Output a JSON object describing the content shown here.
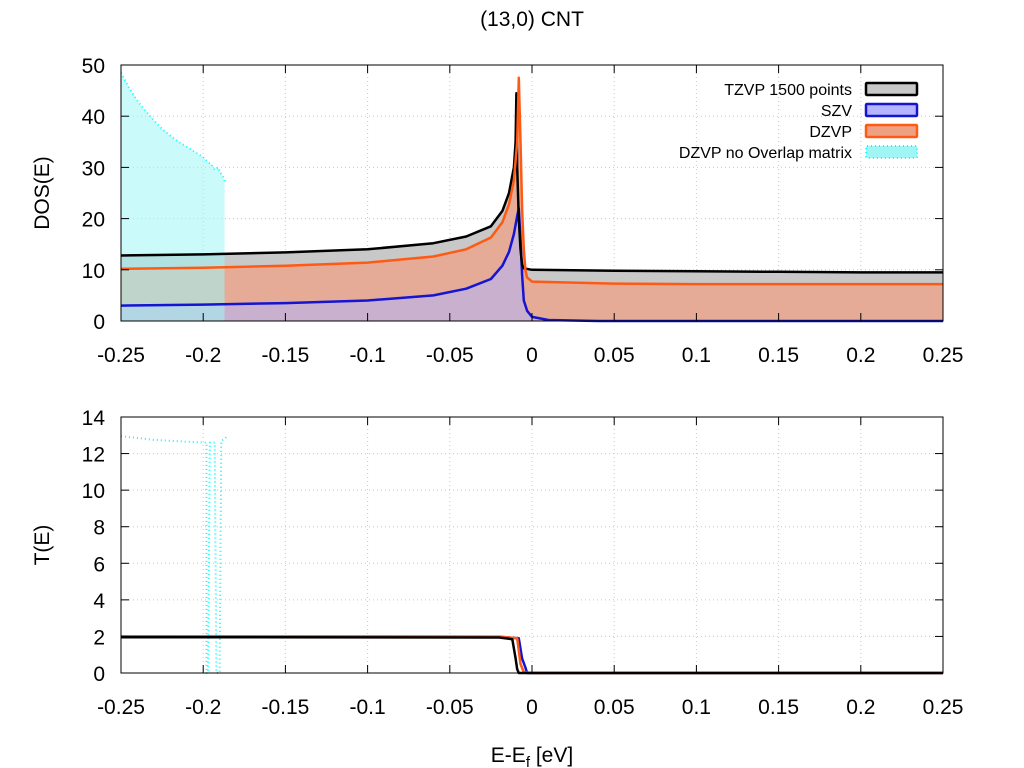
{
  "figure": {
    "title": "(13,0) CNT",
    "xlabel_main": "E-E",
    "xlabel_sub": "f",
    "xlabel_unit": " [eV]"
  },
  "chart_data": [
    {
      "type": "area",
      "panel": "top",
      "title": "(13,0) CNT",
      "ylabel": "DOS(E)",
      "xlim": [
        -0.25,
        0.25
      ],
      "ylim": [
        0,
        50
      ],
      "x_ticks": [
        "-0.25",
        "-0.2",
        "-0.15",
        "-0.1",
        "-0.05",
        "0",
        "0.05",
        "0.1",
        "0.15",
        "0.2",
        "0.25"
      ],
      "y_ticks": [
        "0",
        "10",
        "20",
        "30",
        "40",
        "50"
      ],
      "grid": true,
      "legend_position": "top-right",
      "series": [
        {
          "name": "TZVP 1500 points",
          "color": "#000000",
          "fill": "#c8c8c8",
          "style": "solid",
          "points": [
            [
              -0.25,
              12.8
            ],
            [
              -0.2,
              13.0
            ],
            [
              -0.15,
              13.4
            ],
            [
              -0.1,
              14.0
            ],
            [
              -0.06,
              15.2
            ],
            [
              -0.04,
              16.5
            ],
            [
              -0.025,
              18.5
            ],
            [
              -0.018,
              21.5
            ],
            [
              -0.014,
              25.0
            ],
            [
              -0.011,
              30.0
            ],
            [
              -0.01,
              35.0
            ],
            [
              -0.0095,
              44.5
            ],
            [
              -0.009,
              30.0
            ],
            [
              -0.008,
              20.0
            ],
            [
              -0.007,
              14.0
            ],
            [
              -0.006,
              11.0
            ],
            [
              -0.005,
              10.3
            ],
            [
              0.0,
              10.0
            ],
            [
              0.05,
              9.8
            ],
            [
              0.1,
              9.7
            ],
            [
              0.15,
              9.6
            ],
            [
              0.2,
              9.5
            ],
            [
              0.25,
              9.5
            ]
          ]
        },
        {
          "name": "SZV",
          "color": "#1414d2",
          "fill": "#b4b4ff",
          "style": "solid",
          "points": [
            [
              -0.25,
              3.0
            ],
            [
              -0.2,
              3.2
            ],
            [
              -0.15,
              3.5
            ],
            [
              -0.1,
              4.0
            ],
            [
              -0.06,
              5.0
            ],
            [
              -0.04,
              6.3
            ],
            [
              -0.025,
              8.2
            ],
            [
              -0.018,
              10.8
            ],
            [
              -0.014,
              13.5
            ],
            [
              -0.011,
              17.0
            ],
            [
              -0.009,
              20.5
            ],
            [
              -0.008,
              22.0
            ],
            [
              -0.007,
              16.0
            ],
            [
              -0.006,
              9.0
            ],
            [
              -0.005,
              4.0
            ],
            [
              -0.003,
              2.0
            ],
            [
              0.0,
              0.8
            ],
            [
              0.01,
              0.2
            ],
            [
              0.04,
              0.0
            ],
            [
              0.1,
              0.0
            ],
            [
              0.25,
              0.0
            ]
          ]
        },
        {
          "name": "DZVP",
          "color": "#ff5a14",
          "fill": "#f0a082",
          "style": "solid",
          "points": [
            [
              -0.25,
              10.2
            ],
            [
              -0.2,
              10.4
            ],
            [
              -0.15,
              10.8
            ],
            [
              -0.1,
              11.4
            ],
            [
              -0.06,
              12.6
            ],
            [
              -0.04,
              14.0
            ],
            [
              -0.025,
              16.3
            ],
            [
              -0.018,
              19.3
            ],
            [
              -0.014,
              22.8
            ],
            [
              -0.011,
              27.5
            ],
            [
              -0.009,
              35.0
            ],
            [
              -0.008,
              47.5
            ],
            [
              -0.007,
              35.0
            ],
            [
              -0.006,
              22.0
            ],
            [
              -0.005,
              14.0
            ],
            [
              -0.004,
              10.0
            ],
            [
              -0.003,
              8.5
            ],
            [
              0.0,
              7.7
            ],
            [
              0.05,
              7.3
            ],
            [
              0.1,
              7.2
            ],
            [
              0.15,
              7.2
            ],
            [
              0.2,
              7.2
            ],
            [
              0.25,
              7.2
            ]
          ]
        },
        {
          "name": "DZVP no Overlap matrix",
          "color": "#00ffff",
          "fill": "#a0f5f5",
          "style": "dotted",
          "points": [
            [
              -0.25,
              48.5
            ],
            [
              -0.245,
              45.5
            ],
            [
              -0.24,
              43.0
            ],
            [
              -0.235,
              41.0
            ],
            [
              -0.23,
              39.2
            ],
            [
              -0.225,
              37.5
            ],
            [
              -0.22,
              36.2
            ],
            [
              -0.215,
              35.0
            ],
            [
              -0.21,
              34.0
            ],
            [
              -0.205,
              33.0
            ],
            [
              -0.2,
              32.0
            ],
            [
              -0.197,
              31.0
            ],
            [
              -0.195,
              30.6
            ],
            [
              -0.193,
              29.5
            ],
            [
              -0.191,
              30.0
            ],
            [
              -0.19,
              29.2
            ],
            [
              -0.188,
              28.2
            ],
            [
              -0.187,
              27.3
            ]
          ]
        }
      ]
    },
    {
      "type": "line",
      "panel": "bottom",
      "ylabel": "T(E)",
      "xlabel": "E-Ef [eV]",
      "xlim": [
        -0.25,
        0.25
      ],
      "ylim": [
        0,
        14
      ],
      "x_ticks": [
        "-0.25",
        "-0.2",
        "-0.15",
        "-0.1",
        "-0.05",
        "0",
        "0.05",
        "0.1",
        "0.15",
        "0.2",
        "0.25"
      ],
      "y_ticks": [
        "0",
        "2",
        "4",
        "6",
        "8",
        "10",
        "12",
        "14"
      ],
      "grid": true,
      "series": [
        {
          "name": "DZVP no Overlap matrix",
          "color": "#00ffff",
          "style": "dotted",
          "points": [
            [
              -0.25,
              12.95
            ],
            [
              -0.23,
              12.75
            ],
            [
              -0.21,
              12.65
            ],
            [
              -0.2,
              12.6
            ],
            [
              -0.198,
              12.6
            ],
            [
              -0.198,
              0.0
            ],
            [
              -0.197,
              0.0
            ],
            [
              -0.196,
              12.6
            ],
            [
              -0.193,
              12.6
            ],
            [
              -0.192,
              0.0
            ],
            [
              -0.19,
              0.0
            ],
            [
              -0.189,
              12.7
            ],
            [
              -0.187,
              12.8
            ],
            [
              -0.185,
              13.0
            ]
          ]
        },
        {
          "name": "SZV",
          "color": "#1414d2",
          "style": "solid",
          "points": [
            [
              -0.25,
              2.0
            ],
            [
              -0.02,
              1.98
            ],
            [
              -0.008,
              1.9
            ],
            [
              -0.006,
              0.8
            ],
            [
              -0.004,
              0.3
            ],
            [
              -0.003,
              0.0
            ],
            [
              0.25,
              0.0
            ]
          ]
        },
        {
          "name": "DZVP",
          "color": "#ff5a14",
          "style": "solid",
          "points": [
            [
              -0.25,
              2.0
            ],
            [
              -0.02,
              1.99
            ],
            [
              -0.009,
              1.9
            ],
            [
              -0.007,
              0.5
            ],
            [
              -0.005,
              0.05
            ],
            [
              0.0,
              0.0
            ],
            [
              0.25,
              0.0
            ]
          ]
        },
        {
          "name": "TZVP 1500 points",
          "color": "#000000",
          "style": "solid",
          "points": [
            [
              -0.25,
              1.96
            ],
            [
              -0.02,
              1.94
            ],
            [
              -0.012,
              1.85
            ],
            [
              -0.01,
              0.8
            ],
            [
              -0.009,
              0.2
            ],
            [
              -0.008,
              0.0
            ],
            [
              0.25,
              0.0
            ]
          ]
        }
      ]
    }
  ]
}
